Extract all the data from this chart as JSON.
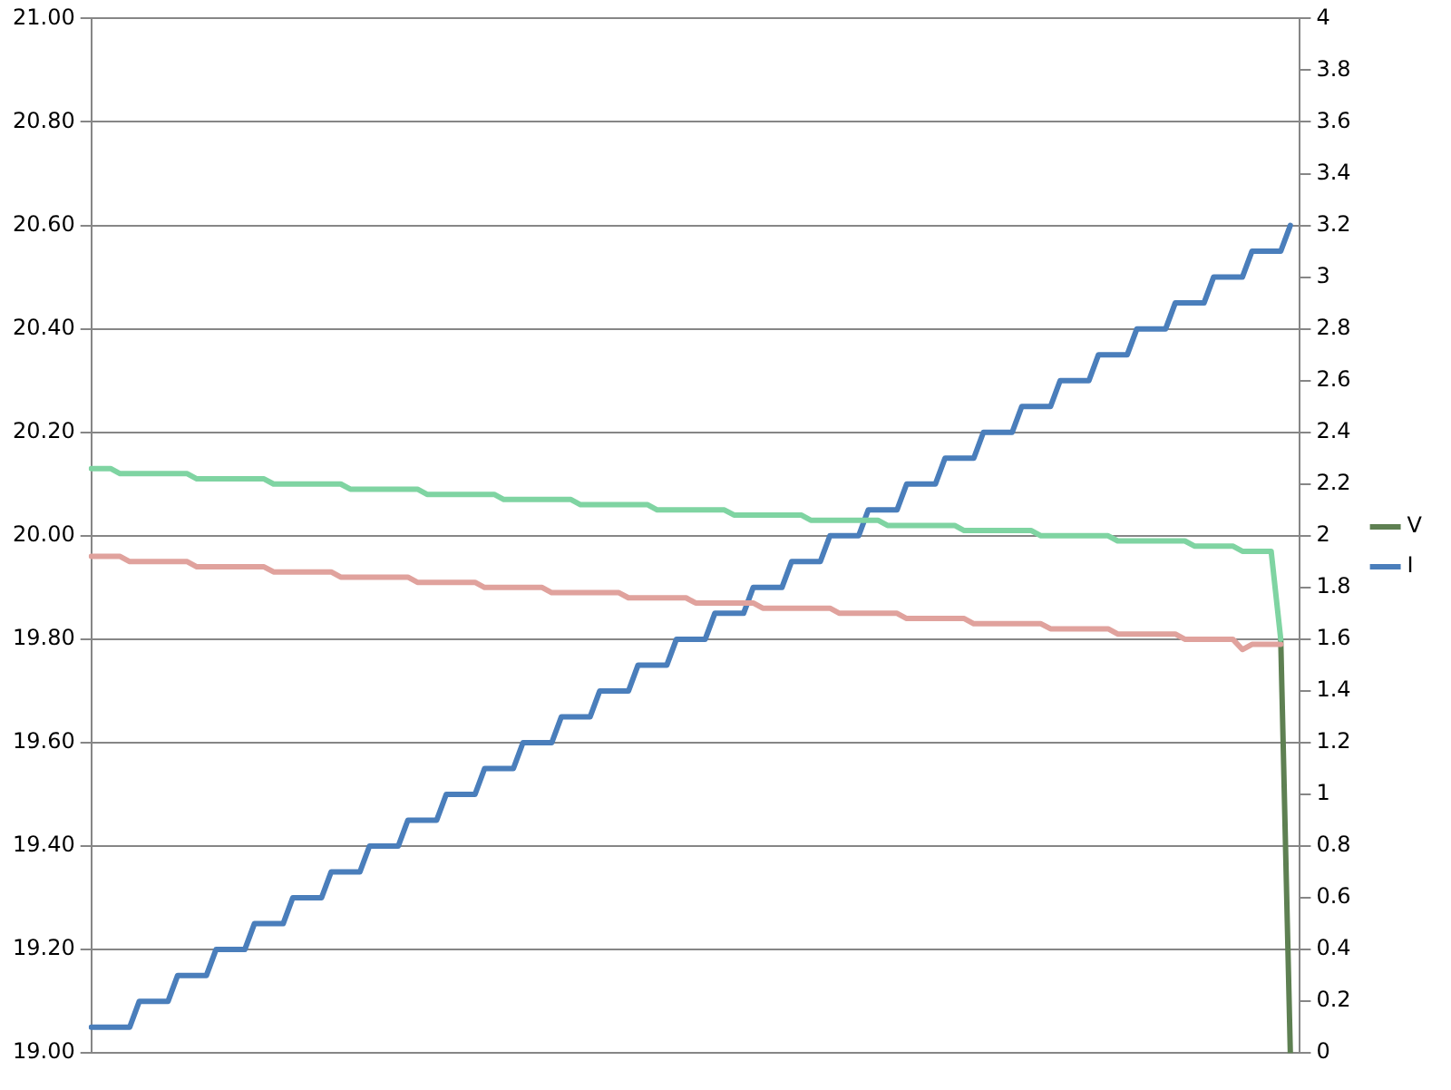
{
  "chart_data": {
    "type": "line",
    "categories": [
      null,
      null,
      null,
      null,
      null,
      null,
      null,
      null,
      null,
      null,
      null,
      null,
      null,
      null,
      null,
      null,
      null,
      null,
      null,
      null,
      null,
      null,
      null,
      null,
      null,
      null,
      null,
      null,
      null,
      null,
      null,
      null,
      null,
      null,
      null,
      null,
      null,
      null,
      null,
      null,
      null,
      null,
      null,
      null,
      null,
      null,
      null,
      null,
      null,
      null,
      null,
      null,
      null,
      null,
      null,
      null,
      null,
      null,
      null,
      null,
      null,
      null,
      null,
      null,
      null,
      null,
      null,
      null,
      null,
      null,
      null,
      null,
      null,
      null,
      null,
      null,
      null,
      null,
      null,
      null,
      null,
      null,
      null,
      null,
      null,
      null,
      null,
      null,
      null,
      null,
      null,
      null,
      null,
      null,
      null,
      null,
      null,
      null,
      null,
      null,
      null,
      null,
      null,
      null,
      null,
      null,
      null,
      null,
      null,
      null,
      null,
      null,
      null,
      null,
      null,
      null,
      null,
      null,
      null,
      null,
      null,
      null,
      null,
      null,
      null,
      null,
      null
    ],
    "series": [
      {
        "color": "#7fd4a2",
        "values": [
          20.13,
          20.13,
          20.13,
          20.12,
          20.12,
          20.12,
          20.12,
          20.12,
          20.12,
          20.12,
          20.12,
          20.11,
          20.11,
          20.11,
          20.11,
          20.11,
          20.11,
          20.11,
          20.11,
          20.1,
          20.1,
          20.1,
          20.1,
          20.1,
          20.1,
          20.1,
          20.1,
          20.09,
          20.09,
          20.09,
          20.09,
          20.09,
          20.09,
          20.09,
          20.09,
          20.08,
          20.08,
          20.08,
          20.08,
          20.08,
          20.08,
          20.08,
          20.08,
          20.07,
          20.07,
          20.07,
          20.07,
          20.07,
          20.07,
          20.07,
          20.07,
          20.06,
          20.06,
          20.06,
          20.06,
          20.06,
          20.06,
          20.06,
          20.06,
          20.05,
          20.05,
          20.05,
          20.05,
          20.05,
          20.05,
          20.05,
          20.05,
          20.04,
          20.04,
          20.04,
          20.04,
          20.04,
          20.04,
          20.04,
          20.04,
          20.03,
          20.03,
          20.03,
          20.03,
          20.03,
          20.03,
          20.03,
          20.03,
          20.02,
          20.02,
          20.02,
          20.02,
          20.02,
          20.02,
          20.02,
          20.02,
          20.01,
          20.01,
          20.01,
          20.01,
          20.01,
          20.01,
          20.01,
          20.01,
          20.0,
          20.0,
          20.0,
          20.0,
          20.0,
          20.0,
          20.0,
          20.0,
          19.99,
          19.99,
          19.99,
          19.99,
          19.99,
          19.99,
          19.99,
          19.99,
          19.98,
          19.98,
          19.98,
          19.98,
          19.98,
          19.97,
          19.97,
          19.97,
          19.97,
          19.8,
          null,
          null
        ]
      },
      {
        "color": "#e0a29d",
        "values": [
          19.96,
          19.96,
          19.96,
          19.96,
          19.95,
          19.95,
          19.95,
          19.95,
          19.95,
          19.95,
          19.95,
          19.94,
          19.94,
          19.94,
          19.94,
          19.94,
          19.94,
          19.94,
          19.94,
          19.93,
          19.93,
          19.93,
          19.93,
          19.93,
          19.93,
          19.93,
          19.92,
          19.92,
          19.92,
          19.92,
          19.92,
          19.92,
          19.92,
          19.92,
          19.91,
          19.91,
          19.91,
          19.91,
          19.91,
          19.91,
          19.91,
          19.9,
          19.9,
          19.9,
          19.9,
          19.9,
          19.9,
          19.9,
          19.89,
          19.89,
          19.89,
          19.89,
          19.89,
          19.89,
          19.89,
          19.89,
          19.88,
          19.88,
          19.88,
          19.88,
          19.88,
          19.88,
          19.88,
          19.87,
          19.87,
          19.87,
          19.87,
          19.87,
          19.87,
          19.87,
          19.86,
          19.86,
          19.86,
          19.86,
          19.86,
          19.86,
          19.86,
          19.86,
          19.85,
          19.85,
          19.85,
          19.85,
          19.85,
          19.85,
          19.85,
          19.84,
          19.84,
          19.84,
          19.84,
          19.84,
          19.84,
          19.84,
          19.83,
          19.83,
          19.83,
          19.83,
          19.83,
          19.83,
          19.83,
          19.83,
          19.82,
          19.82,
          19.82,
          19.82,
          19.82,
          19.82,
          19.82,
          19.81,
          19.81,
          19.81,
          19.81,
          19.81,
          19.81,
          19.81,
          19.8,
          19.8,
          19.8,
          19.8,
          19.8,
          19.8,
          19.78,
          19.79,
          19.79,
          19.79,
          19.79,
          null,
          null
        ]
      },
      {
        "name": "V",
        "color": "#5e8052",
        "values": [
          null,
          null,
          null,
          null,
          null,
          null,
          null,
          null,
          null,
          null,
          null,
          null,
          null,
          null,
          null,
          null,
          null,
          null,
          null,
          null,
          null,
          null,
          null,
          null,
          null,
          null,
          null,
          null,
          null,
          null,
          null,
          null,
          null,
          null,
          null,
          null,
          null,
          null,
          null,
          null,
          null,
          null,
          null,
          null,
          null,
          null,
          null,
          null,
          null,
          null,
          null,
          null,
          null,
          null,
          null,
          null,
          null,
          null,
          null,
          null,
          null,
          null,
          null,
          null,
          null,
          null,
          null,
          null,
          null,
          null,
          null,
          null,
          null,
          null,
          null,
          null,
          null,
          null,
          null,
          null,
          null,
          null,
          null,
          null,
          null,
          null,
          null,
          null,
          null,
          null,
          null,
          null,
          null,
          null,
          null,
          null,
          null,
          null,
          null,
          null,
          null,
          null,
          null,
          null,
          null,
          null,
          null,
          null,
          null,
          null,
          null,
          null,
          null,
          null,
          null,
          null,
          null,
          null,
          null,
          null,
          null,
          null,
          null,
          null,
          19.8,
          19.0,
          null
        ]
      },
      {
        "name": "I",
        "color": "#4a7ebb",
        "axis": "y2",
        "values": [
          0.1,
          0.1,
          0.1,
          0.1,
          0.1,
          0.2,
          0.2,
          0.2,
          0.2,
          0.3,
          0.3,
          0.3,
          0.3,
          0.4,
          0.4,
          0.4,
          0.4,
          0.5,
          0.5,
          0.5,
          0.5,
          0.6,
          0.6,
          0.6,
          0.6,
          0.7,
          0.7,
          0.7,
          0.7,
          0.8,
          0.8,
          0.8,
          0.8,
          0.9,
          0.9,
          0.9,
          0.9,
          1.0,
          1.0,
          1.0,
          1.0,
          1.1,
          1.1,
          1.1,
          1.1,
          1.2,
          1.2,
          1.2,
          1.2,
          1.3,
          1.3,
          1.3,
          1.3,
          1.4,
          1.4,
          1.4,
          1.4,
          1.5,
          1.5,
          1.5,
          1.5,
          1.6,
          1.6,
          1.6,
          1.6,
          1.7,
          1.7,
          1.7,
          1.7,
          1.8,
          1.8,
          1.8,
          1.8,
          1.9,
          1.9,
          1.9,
          1.9,
          2.0,
          2.0,
          2.0,
          2.0,
          2.1,
          2.1,
          2.1,
          2.1,
          2.2,
          2.2,
          2.2,
          2.2,
          2.3,
          2.3,
          2.3,
          2.3,
          2.4,
          2.4,
          2.4,
          2.4,
          2.5,
          2.5,
          2.5,
          2.5,
          2.6,
          2.6,
          2.6,
          2.6,
          2.7,
          2.7,
          2.7,
          2.7,
          2.8,
          2.8,
          2.8,
          2.8,
          2.9,
          2.9,
          2.9,
          2.9,
          3.0,
          3.0,
          3.0,
          3.0,
          3.1,
          3.1,
          3.1,
          3.1,
          3.2,
          null
        ]
      }
    ],
    "ylim": [
      19,
      21
    ],
    "yticks": [
      {
        "value": 19,
        "label": "19.00"
      },
      {
        "value": 19.2,
        "label": "19.20"
      },
      {
        "value": 19.4,
        "label": "19.40"
      },
      {
        "value": 19.6,
        "label": "19.60"
      },
      {
        "value": 19.8,
        "label": "19.80"
      },
      {
        "value": 20,
        "label": "20.00"
      },
      {
        "value": 20.2,
        "label": "20.20"
      },
      {
        "value": 20.4,
        "label": "20.40"
      },
      {
        "value": 20.6,
        "label": "20.60"
      },
      {
        "value": 20.8,
        "label": "20.80"
      },
      {
        "value": 21,
        "label": "21.00"
      }
    ],
    "y2lim": [
      0,
      4
    ],
    "y2ticks": [
      0,
      0.2,
      0.4,
      0.6,
      0.8,
      1,
      1.2,
      1.4,
      1.6,
      1.8,
      2,
      2.2,
      2.4,
      2.6,
      2.8,
      3,
      3.2,
      3.4,
      3.6,
      3.8,
      4
    ],
    "grid": "y",
    "legend": "right",
    "marker": "none",
    "line_style": "solid"
  }
}
